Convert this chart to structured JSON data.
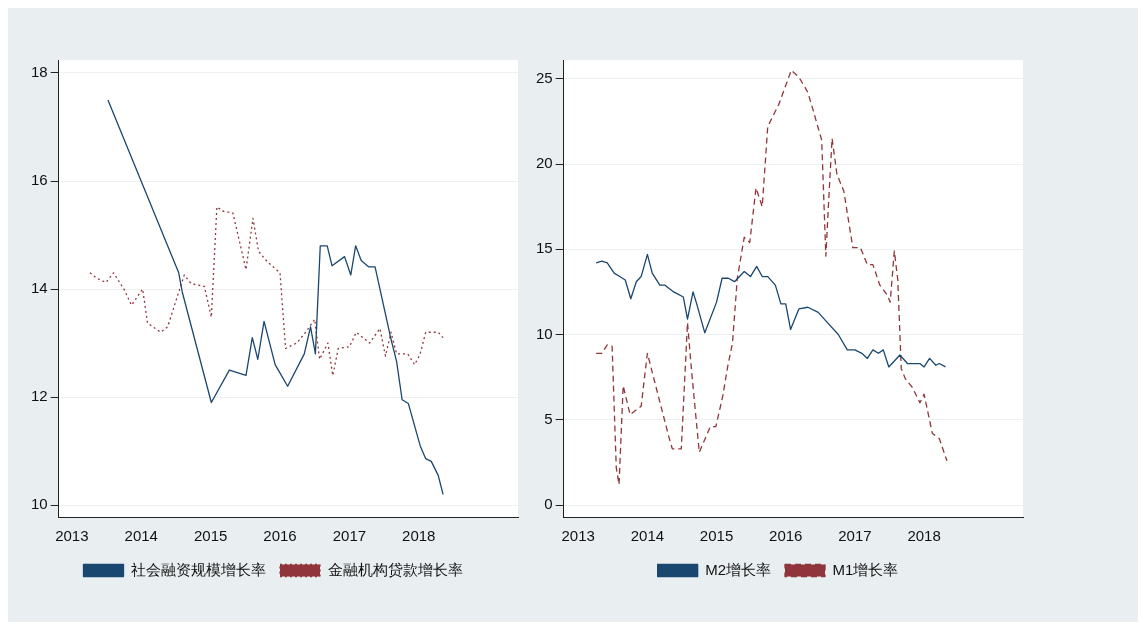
{
  "chart_data": [
    {
      "type": "line",
      "xlim": [
        2012.81,
        2019.43
      ],
      "xticks": [
        2013,
        2014,
        2015,
        2016,
        2017,
        2018
      ],
      "ylim": [
        9.78,
        18.24
      ],
      "yticks": [
        10,
        12,
        14,
        16,
        18
      ],
      "grid": "y",
      "legend": "bottom",
      "series": [
        {
          "name": "社会融资规模增长率",
          "color": "#1a476f",
          "line_style": "solid",
          "x": [
            2013.52,
            2014.54,
            2014.59,
            2015.01,
            2015.27,
            2015.51,
            2015.6,
            2015.68,
            2015.77,
            2015.93,
            2016.11,
            2016.35,
            2016.44,
            2016.51,
            2016.58,
            2016.68,
            2016.75,
            2016.93,
            2017.02,
            2017.09,
            2017.17,
            2017.28,
            2017.37,
            2017.6,
            2017.68,
            2017.76,
            2017.85,
            2018.02,
            2018.1,
            2018.18,
            2018.28,
            2018.35
          ],
          "values": [
            17.5,
            14.3,
            13.95,
            11.9,
            12.5,
            12.4,
            13.1,
            12.7,
            13.4,
            12.6,
            12.2,
            12.8,
            13.3,
            12.8,
            14.8,
            14.8,
            14.43,
            14.6,
            14.26,
            14.8,
            14.53,
            14.41,
            14.41,
            13.07,
            12.66,
            11.95,
            11.88,
            11.1,
            10.86,
            10.81,
            10.55,
            10.2
          ]
        },
        {
          "name": "金融机构贷款增长率",
          "color": "#90353b",
          "line_style": "dotted",
          "x": [
            2013.26,
            2013.36,
            2013.49,
            2013.6,
            2013.75,
            2013.86,
            2014.02,
            2014.09,
            2014.28,
            2014.38,
            2014.62,
            2014.72,
            2014.91,
            2015.01,
            2015.09,
            2015.18,
            2015.32,
            2015.51,
            2015.61,
            2015.69,
            2015.82,
            2016.0,
            2016.08,
            2016.24,
            2016.37,
            2016.5,
            2016.57,
            2016.69,
            2016.76,
            2016.84,
            2017.0,
            2017.1,
            2017.29,
            2017.44,
            2017.52,
            2017.6,
            2017.68,
            2017.84,
            2017.94,
            2018.02,
            2018.1,
            2018.28,
            2018.35
          ],
          "values": [
            14.3,
            14.2,
            14.12,
            14.3,
            14.0,
            13.7,
            14.0,
            13.37,
            13.2,
            13.3,
            14.26,
            14.1,
            14.05,
            13.48,
            15.52,
            15.44,
            15.41,
            14.36,
            15.31,
            14.7,
            14.5,
            14.3,
            12.9,
            13.0,
            13.2,
            13.44,
            12.7,
            13.0,
            12.4,
            12.9,
            12.93,
            13.2,
            13.0,
            13.27,
            12.76,
            13.2,
            12.8,
            12.8,
            12.6,
            12.8,
            13.2,
            13.2,
            13.1
          ]
        }
      ]
    },
    {
      "type": "line",
      "xlim": [
        2012.79,
        2019.43
      ],
      "xticks": [
        2013,
        2014,
        2015,
        2016,
        2017,
        2018
      ],
      "ylim": [
        -0.7,
        26.1
      ],
      "yticks": [
        0,
        5,
        10,
        15,
        20,
        25
      ],
      "grid": "y",
      "legend": "bottom",
      "series": [
        {
          "name": "M2增长率",
          "color": "#1a476f",
          "line_style": "solid",
          "x": [
            2013.26,
            2013.34,
            2013.42,
            2013.52,
            2013.6,
            2013.68,
            2013.76,
            2013.84,
            2013.91,
            2014.0,
            2014.07,
            2014.18,
            2014.25,
            2014.38,
            2014.52,
            2014.58,
            2014.66,
            2014.72,
            2014.83,
            2015.0,
            2015.08,
            2015.17,
            2015.26,
            2015.4,
            2015.49,
            2015.58,
            2015.66,
            2015.74,
            2015.85,
            2015.93,
            2016.0,
            2016.07,
            2016.19,
            2016.32,
            2016.47,
            2016.58,
            2016.76,
            2016.89,
            2017.0,
            2017.1,
            2017.18,
            2017.26,
            2017.34,
            2017.41,
            2017.49,
            2017.65,
            2017.76,
            2017.94,
            2018.0,
            2018.08,
            2018.17,
            2018.22,
            2018.31
          ],
          "values": [
            14.2,
            14.3,
            14.2,
            13.6,
            13.4,
            13.2,
            12.1,
            13.1,
            13.4,
            14.7,
            13.6,
            12.9,
            12.9,
            12.5,
            12.2,
            10.9,
            12.5,
            11.7,
            10.1,
            11.9,
            13.3,
            13.3,
            13.1,
            13.7,
            13.4,
            14.0,
            13.4,
            13.4,
            12.9,
            11.8,
            11.8,
            10.3,
            11.5,
            11.6,
            11.3,
            10.8,
            10.0,
            9.1,
            9.1,
            8.9,
            8.6,
            9.1,
            8.9,
            9.1,
            8.1,
            8.8,
            8.3,
            8.3,
            8.1,
            8.6,
            8.2,
            8.3,
            8.1
          ]
        },
        {
          "name": "M1增长率",
          "color": "#90353b",
          "line_style": "dashed",
          "x": [
            2013.26,
            2013.34,
            2013.42,
            2013.49,
            2013.55,
            2013.59,
            2013.65,
            2013.75,
            2013.91,
            2014.0,
            2014.12,
            2014.31,
            2014.36,
            2014.49,
            2014.58,
            2014.64,
            2014.75,
            2014.91,
            2014.99,
            2015.09,
            2015.16,
            2015.23,
            2015.3,
            2015.4,
            2015.48,
            2015.57,
            2015.66,
            2015.74,
            2015.9,
            2016.08,
            2016.19,
            2016.32,
            2016.4,
            2016.47,
            2016.52,
            2016.58,
            2016.62,
            2016.67,
            2016.74,
            2016.84,
            2016.97,
            2017.08,
            2017.18,
            2017.26,
            2017.36,
            2017.47,
            2017.51,
            2017.57,
            2017.62,
            2017.67,
            2017.73,
            2017.83,
            2017.94,
            2018.0,
            2018.12,
            2018.22,
            2018.33
          ],
          "values": [
            8.9,
            8.9,
            9.4,
            9.3,
            2.2,
            1.2,
            7.0,
            5.3,
            5.8,
            8.9,
            7.0,
            4.0,
            3.3,
            3.3,
            10.7,
            7.8,
            3.1,
            4.6,
            4.6,
            6.4,
            8.1,
            9.5,
            13.3,
            15.7,
            15.4,
            18.6,
            17.5,
            22.2,
            23.5,
            25.5,
            25.1,
            24.2,
            23.1,
            22.1,
            21.4,
            14.6,
            17.8,
            21.5,
            19.4,
            18.4,
            15.1,
            15.1,
            14.1,
            14.1,
            12.9,
            12.3,
            11.9,
            14.9,
            13.2,
            8.0,
            7.4,
            6.9,
            6.0,
            6.5,
            4.2,
            3.9,
            2.6
          ]
        }
      ]
    }
  ]
}
